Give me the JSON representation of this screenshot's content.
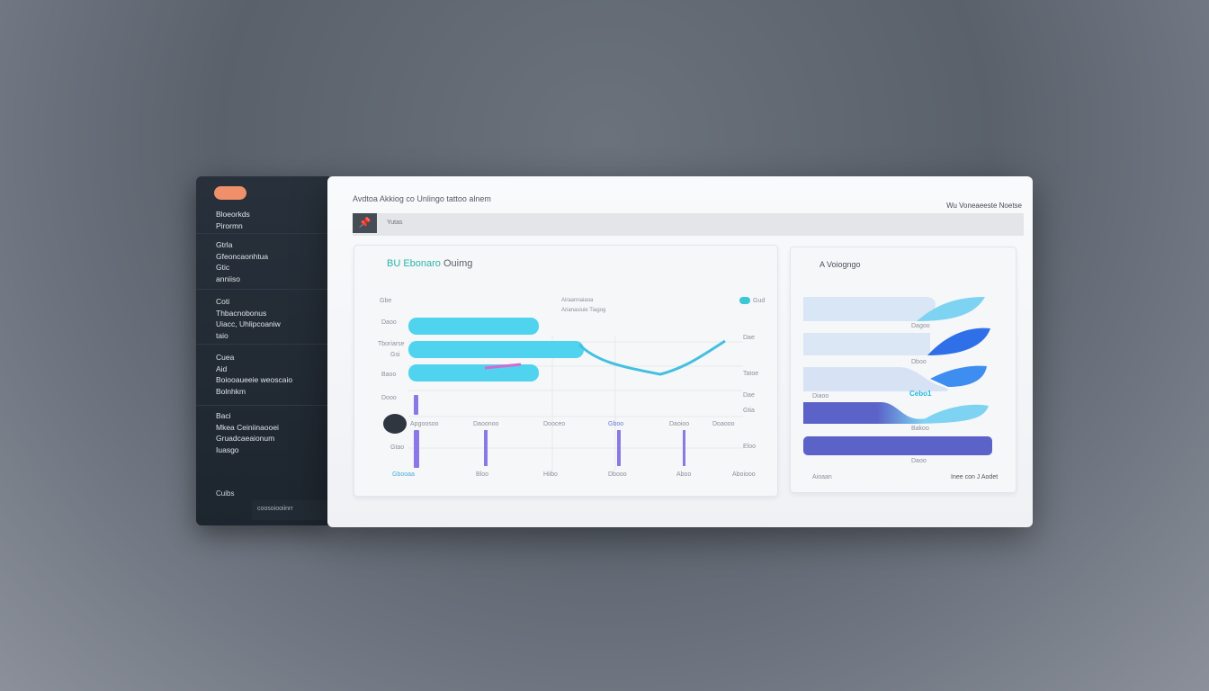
{
  "sidebar": {
    "groups": [
      [
        "Bloeorkds",
        "Pirormn"
      ],
      [
        "Gtrla",
        "Gfeoncaonhtua",
        "Gtic",
        "anniiso"
      ],
      [
        "Coti",
        "Thbacnobonus",
        "Uiacc, Uhlipcoaniw",
        "taio"
      ],
      [
        "Cuea",
        "Aid",
        "Boiooaueeie weoscaio",
        "Bolnhkm"
      ],
      [
        "Baci",
        "Mkea Ceiniinaooei",
        "Gruadcaeaionum",
        "Iuasgo"
      ]
    ],
    "footer": "Cuibs",
    "bottom_label": "coosoiooiinrr"
  },
  "header": {
    "title": "Avdtoa Akkiog  co  Unlingo tattoo alnem",
    "right": "Wu Voneaeeste  Noetse"
  },
  "toolbar": {
    "label": "Yutas"
  },
  "left_card": {
    "title_accent": "BU Ebonaro",
    "title_rest": "Ouimg",
    "legend_top": "Gbe",
    "legend_right": "Gud",
    "note": [
      "Airaannaiaoa",
      "Arianasiuie Tiagog"
    ],
    "y_left": [
      "Daoo",
      "Tboriarse",
      "Gsi",
      "Baoo",
      "Dooo",
      "Gtao"
    ],
    "y_right": [
      "Dae",
      "Tatoe",
      "Dae",
      "Gtia",
      "Eloo"
    ],
    "x_mid": [
      "Apgoosoo",
      "Daoonoo",
      "Dooceo",
      "Gboo",
      "Daoioo",
      "Doaooo"
    ],
    "x_bottom": [
      "Gbooaa",
      "Bloo",
      "Hiibo",
      "Dbooo",
      "Aboo",
      "Aboiooo"
    ],
    "colors": {
      "bar": "#4fd3ee",
      "line": "#43bfe0",
      "purple": "#8b78e6",
      "pink": "#d46ad0"
    }
  },
  "right_card": {
    "title": "A Voiogngo",
    "row_labels": [
      "Dagoo",
      "Dboo",
      "Diaoo",
      "Bakoo",
      "Daoo"
    ],
    "highlight": "Cebo1",
    "footer_left": "Aioaan",
    "footer_right": "Inee con  J  Aodet",
    "colors": {
      "light": "#d9e6f6",
      "sky": "#7fd3f2",
      "blue": "#2f6fe8",
      "mid": "#3d8ef0",
      "indigo": "#5b63c8"
    }
  }
}
